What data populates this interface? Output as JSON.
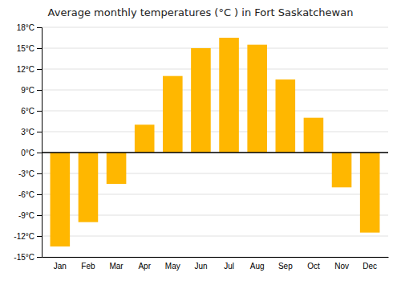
{
  "chart_data": {
    "type": "bar",
    "title": "Average monthly temperatures (°C ) in Fort Saskatchewan",
    "categories": [
      "Jan",
      "Feb",
      "Mar",
      "Apr",
      "May",
      "Jun",
      "Jul",
      "Aug",
      "Sep",
      "Oct",
      "Nov",
      "Dec"
    ],
    "values": [
      -13.5,
      -10.0,
      -4.5,
      4.0,
      11.0,
      15.0,
      16.5,
      15.5,
      10.5,
      5.0,
      -5.0,
      -11.5
    ],
    "color": "#FFB700",
    "ylim": [
      -15,
      18
    ],
    "yticks": [
      {
        "value": -15,
        "label": "-15°C"
      },
      {
        "value": -12,
        "label": "-12°C"
      },
      {
        "value": -9,
        "label": "-9°C"
      },
      {
        "value": -6,
        "label": "-6°C"
      },
      {
        "value": -3,
        "label": "-3°C"
      },
      {
        "value": 0,
        "label": "0°C"
      },
      {
        "value": 3,
        "label": "3°C"
      },
      {
        "value": 6,
        "label": "6°C"
      },
      {
        "value": 9,
        "label": "9°C"
      },
      {
        "value": 12,
        "label": "12°C"
      },
      {
        "value": 15,
        "label": "15°C"
      },
      {
        "value": 18,
        "label": "18°C"
      }
    ],
    "grid": true
  }
}
